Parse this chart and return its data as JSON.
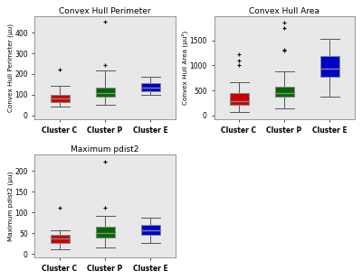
{
  "plot1": {
    "title": "Convex Hull Perimeter",
    "ylabel": "Convex Hull Perimeter (µu)",
    "ylim": [
      -20,
      480
    ],
    "yticks": [
      0,
      100,
      200,
      300,
      400
    ],
    "clusters": [
      "Cluster C",
      "Cluster P",
      "Cluster E"
    ],
    "colors": [
      "#cc0000",
      "#006600",
      "#0000cc"
    ],
    "boxes": [
      {
        "q1": 63,
        "median": 80,
        "q3": 100,
        "whislo": 42,
        "whishi": 143,
        "fliers": [
          220
        ]
      },
      {
        "q1": 88,
        "median": 108,
        "q3": 135,
        "whislo": 52,
        "whishi": 218,
        "fliers": [
          242,
          452
        ]
      },
      {
        "q1": 118,
        "median": 135,
        "q3": 158,
        "whislo": 98,
        "whishi": 188,
        "fliers": []
      }
    ]
  },
  "plot2": {
    "title": "Convex Hull Area",
    "ylabel": "Convex Hull Area (µu²)",
    "ylim": [
      -80,
      1980
    ],
    "yticks": [
      0,
      500,
      1000,
      1500
    ],
    "clusters": [
      "Cluster C",
      "Cluster P",
      "Cluster E"
    ],
    "colors": [
      "#cc0000",
      "#006600",
      "#0000cc"
    ],
    "boxes": [
      {
        "q1": 215,
        "median": 285,
        "q3": 445,
        "whislo": 75,
        "whishi": 670,
        "fliers": [
          1000,
          1100,
          1220
        ]
      },
      {
        "q1": 375,
        "median": 438,
        "q3": 575,
        "whislo": 145,
        "whishi": 875,
        "fliers": [
          1295,
          1315,
          1750,
          1860
        ]
      },
      {
        "q1": 775,
        "median": 935,
        "q3": 1195,
        "whislo": 375,
        "whishi": 1525,
        "fliers": []
      }
    ]
  },
  "plot3": {
    "title": "Maximum pdist2",
    "ylabel": "Maximum pdist2 (µu)",
    "ylim": [
      -8,
      240
    ],
    "yticks": [
      0,
      50,
      100,
      150,
      200
    ],
    "clusters": [
      "Cluster C",
      "Cluster P",
      "Cluster E"
    ],
    "colors": [
      "#cc0000",
      "#006600",
      "#0000cc"
    ],
    "boxes": [
      {
        "q1": 27,
        "median": 37,
        "q3": 47,
        "whislo": 11,
        "whishi": 57,
        "fliers": [
          112
        ]
      },
      {
        "q1": 41,
        "median": 51,
        "q3": 67,
        "whislo": 17,
        "whishi": 93,
        "fliers": [
          112,
          222
        ]
      },
      {
        "q1": 47,
        "median": 57,
        "q3": 71,
        "whislo": 27,
        "whishi": 87,
        "fliers": []
      }
    ]
  },
  "plot_bg": "#e8e8e8",
  "figure_bg": "#ffffff",
  "box_width": 0.42,
  "spine_color": "#888888",
  "whisker_color": "#555555",
  "median_color": "#888888",
  "flier_color": "black",
  "title_fontsize": 6.5,
  "label_fontsize": 5.2,
  "tick_fontsize": 5.5,
  "xlabel_fontweight": "bold"
}
